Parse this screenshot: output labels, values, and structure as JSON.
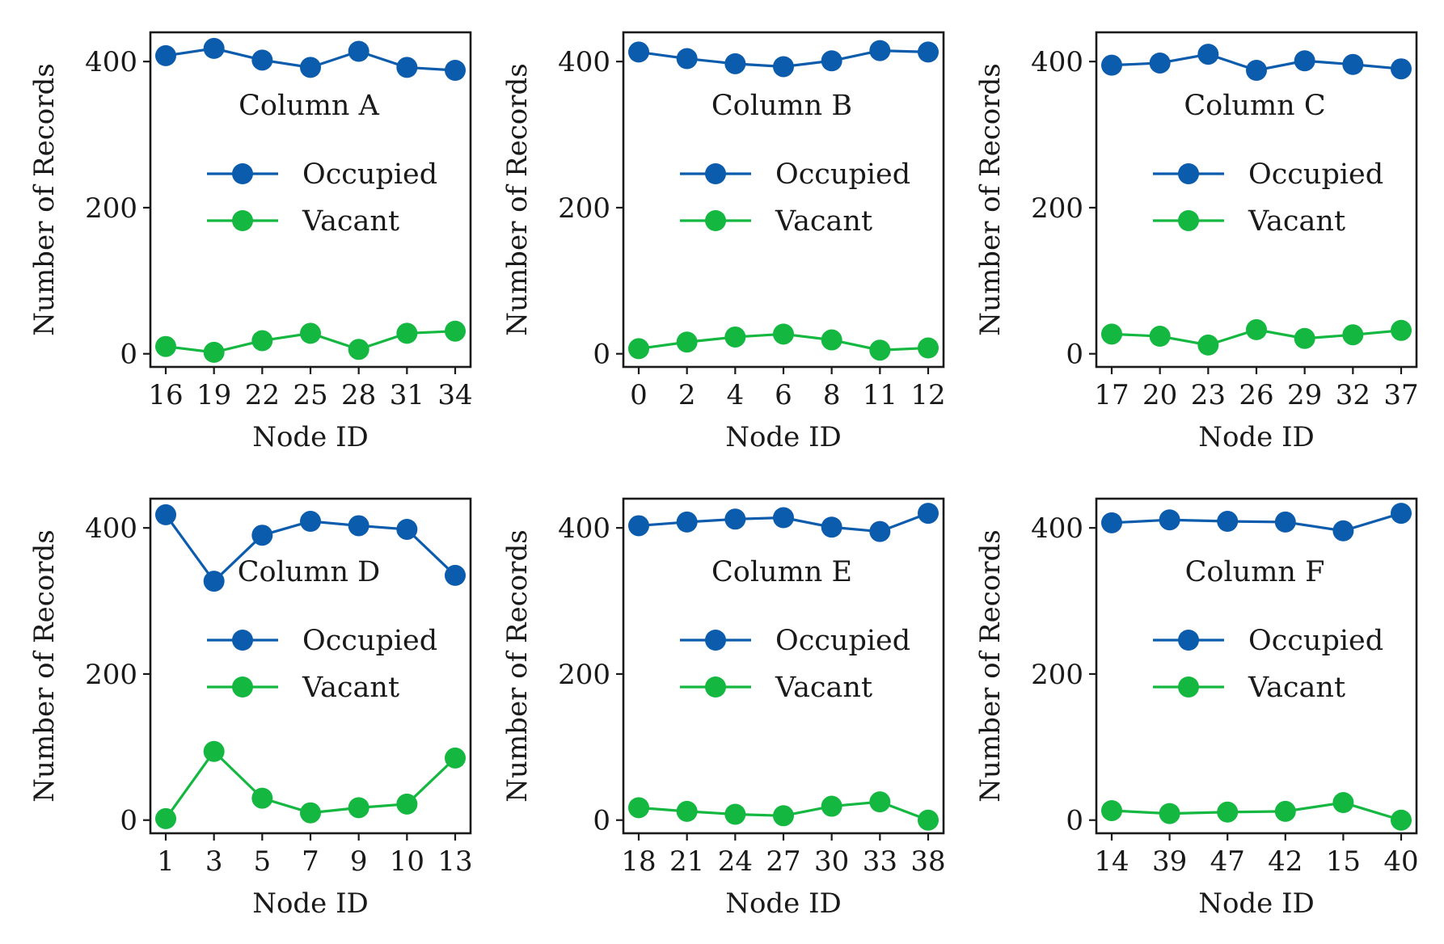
{
  "chart_data": [
    {
      "type": "line",
      "title": "Column A",
      "xlabel": "Node ID",
      "ylabel": "Number of Records",
      "categories": [
        "16",
        "19",
        "22",
        "25",
        "28",
        "31",
        "34"
      ],
      "ylim": [
        -18,
        440
      ],
      "yticks": [
        0,
        200,
        400
      ],
      "legend_position": "center",
      "series": [
        {
          "name": "Occupied",
          "color": "#0b5cad",
          "values": [
            408,
            418,
            402,
            392,
            414,
            392,
            388
          ]
        },
        {
          "name": "Vacant",
          "color": "#14b840",
          "values": [
            10,
            2,
            18,
            28,
            6,
            28,
            31
          ]
        }
      ]
    },
    {
      "type": "line",
      "title": "Column B",
      "xlabel": "Node ID",
      "ylabel": "Number of Records",
      "categories": [
        "0",
        "2",
        "4",
        "6",
        "8",
        "11",
        "12"
      ],
      "ylim": [
        -18,
        440
      ],
      "yticks": [
        0,
        200,
        400
      ],
      "legend_position": "center",
      "series": [
        {
          "name": "Occupied",
          "color": "#0b5cad",
          "values": [
            413,
            404,
            397,
            393,
            401,
            415,
            413
          ]
        },
        {
          "name": "Vacant",
          "color": "#14b840",
          "values": [
            7,
            16,
            23,
            27,
            19,
            5,
            8
          ]
        }
      ]
    },
    {
      "type": "line",
      "title": "Column C",
      "xlabel": "Node ID",
      "ylabel": "Number of Records",
      "categories": [
        "17",
        "20",
        "23",
        "26",
        "29",
        "32",
        "37"
      ],
      "ylim": [
        -18,
        440
      ],
      "yticks": [
        0,
        200,
        400
      ],
      "legend_position": "center",
      "series": [
        {
          "name": "Occupied",
          "color": "#0b5cad",
          "values": [
            395,
            398,
            410,
            388,
            401,
            396,
            390
          ]
        },
        {
          "name": "Vacant",
          "color": "#14b840",
          "values": [
            27,
            24,
            12,
            33,
            21,
            26,
            32
          ]
        }
      ]
    },
    {
      "type": "line",
      "title": "Column D",
      "xlabel": "Node ID",
      "ylabel": "Number of Records",
      "categories": [
        "1",
        "3",
        "5",
        "7",
        "9",
        "10",
        "13"
      ],
      "ylim": [
        -18,
        440
      ],
      "yticks": [
        0,
        200,
        400
      ],
      "legend_position": "center",
      "series": [
        {
          "name": "Occupied",
          "color": "#0b5cad",
          "values": [
            418,
            327,
            390,
            409,
            403,
            398,
            335
          ]
        },
        {
          "name": "Vacant",
          "color": "#14b840",
          "values": [
            2,
            94,
            30,
            10,
            17,
            22,
            85
          ]
        }
      ]
    },
    {
      "type": "line",
      "title": "Column E",
      "xlabel": "Node ID",
      "ylabel": "Number of Records",
      "categories": [
        "18",
        "21",
        "24",
        "27",
        "30",
        "33",
        "38"
      ],
      "ylim": [
        -18,
        440
      ],
      "yticks": [
        0,
        200,
        400
      ],
      "legend_position": "center",
      "series": [
        {
          "name": "Occupied",
          "color": "#0b5cad",
          "values": [
            403,
            408,
            412,
            414,
            401,
            395,
            420
          ]
        },
        {
          "name": "Vacant",
          "color": "#14b840",
          "values": [
            17,
            12,
            8,
            6,
            19,
            25,
            0
          ]
        }
      ]
    },
    {
      "type": "line",
      "title": "Column F",
      "xlabel": "Node ID",
      "ylabel": "Number of Records",
      "categories": [
        "14",
        "39",
        "47",
        "42",
        "15",
        "40"
      ],
      "ylim": [
        -18,
        440
      ],
      "yticks": [
        0,
        200,
        400
      ],
      "legend_position": "center",
      "series": [
        {
          "name": "Occupied",
          "color": "#0b5cad",
          "values": [
            407,
            411,
            409,
            408,
            396,
            420
          ]
        },
        {
          "name": "Vacant",
          "color": "#14b840",
          "values": [
            13,
            9,
            11,
            12,
            24,
            0
          ]
        }
      ]
    }
  ]
}
